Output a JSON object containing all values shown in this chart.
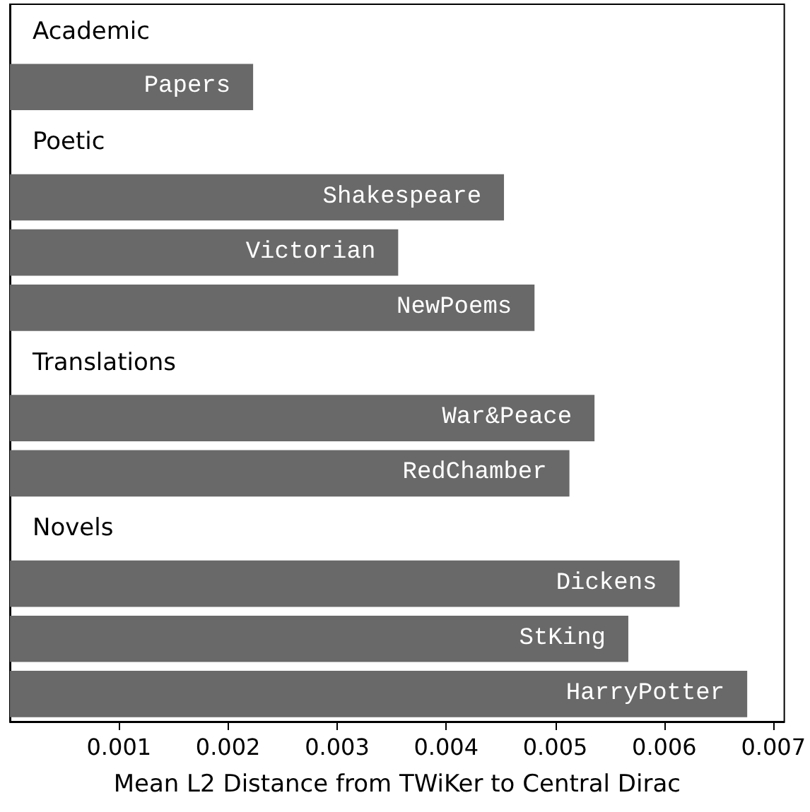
{
  "chart_data": {
    "type": "bar",
    "orientation": "horizontal",
    "xlabel": "Mean L2 Distance from TWiKer to Central Dirac",
    "categories": [
      "Academic",
      "Papers",
      "Poetic",
      "Shakespeare",
      "Victorian",
      "NewPoems",
      "Translations",
      "War&Peace",
      "RedChamber",
      "Novels",
      "Dickens",
      "StKing",
      "HarryPotter"
    ],
    "values": [
      null,
      0.00223,
      null,
      0.00453,
      0.00356,
      0.00481,
      null,
      0.00536,
      0.00513,
      null,
      0.00614,
      0.00567,
      0.00676
    ],
    "color": "#696969",
    "xlim": [
      0,
      0.0071
    ],
    "xticks": [
      0.001,
      0.002,
      0.003,
      0.004,
      0.005,
      0.006,
      0.007
    ],
    "grid": false,
    "tick_labels": "x"
  }
}
